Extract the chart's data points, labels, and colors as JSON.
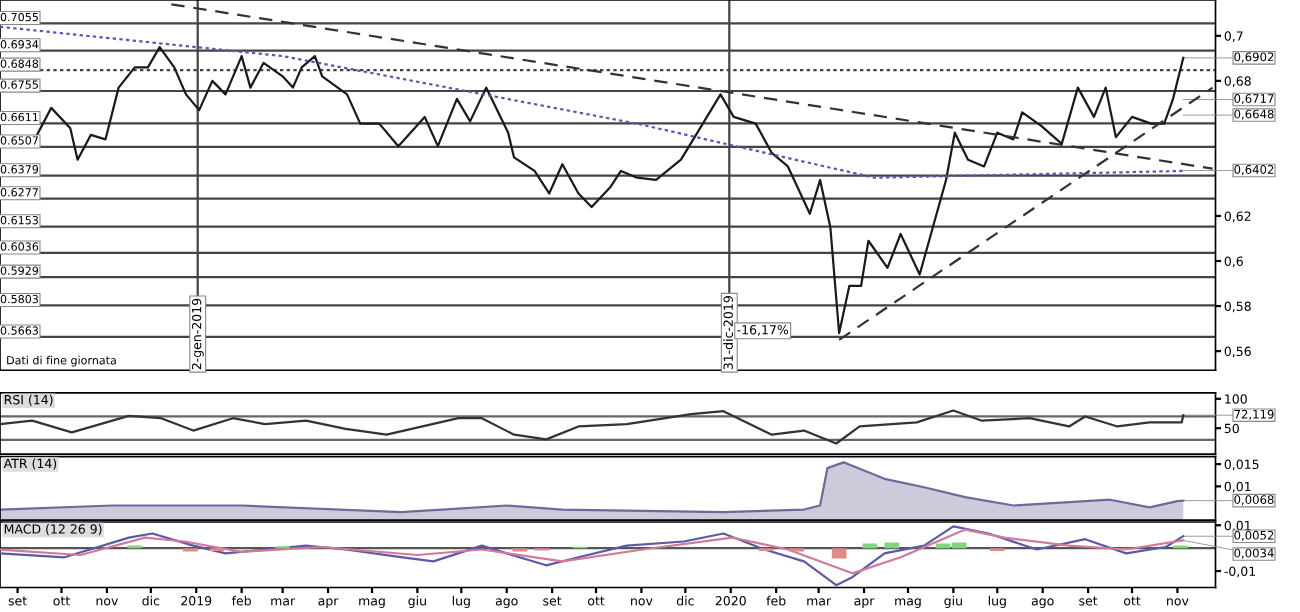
{
  "chart_data": [
    {
      "type": "line",
      "xlim": [
        "2018-08-20",
        "2020-11-27"
      ],
      "ylim": [
        0.5515,
        0.7159
      ],
      "yticks": [
        {
          "value": 0.7,
          "label": "0,7"
        },
        {
          "value": 0.68,
          "label": "0,68"
        },
        {
          "value": 0.62,
          "label": "0,62"
        },
        {
          "value": 0.6,
          "label": "0,6"
        },
        {
          "value": 0.58,
          "label": "0,58"
        },
        {
          "value": 0.56,
          "label": "0,56"
        }
      ],
      "tick_labels": "y",
      "grid": false,
      "legend": false,
      "series": [
        {
          "color": "#1a1a1a",
          "x": [
            "2018-09-11",
            "2018-09-24",
            "2018-10-07",
            "2018-10-12",
            "2018-10-21",
            "2018-10-31",
            "2018-11-09",
            "2018-11-20",
            "2018-11-29",
            "2018-12-07",
            "2018-12-17",
            "2018-12-25",
            "2019-01-03",
            "2019-01-12",
            "2019-01-21",
            "2019-02-01",
            "2019-02-07",
            "2019-02-16",
            "2019-03-01",
            "2019-03-08",
            "2019-03-14",
            "2019-03-23",
            "2019-03-28",
            "2019-04-14",
            "2019-04-23",
            "2019-05-06",
            "2019-05-19",
            "2019-06-06",
            "2019-06-15",
            "2019-06-28",
            "2019-07-07",
            "2019-07-18",
            "2019-08-02",
            "2019-08-06",
            "2019-08-20",
            "2019-08-30",
            "2019-09-08",
            "2019-09-19",
            "2019-09-28",
            "2019-10-11",
            "2019-10-18",
            "2019-10-29",
            "2019-11-11",
            "2019-11-28",
            "2019-12-12",
            "2019-12-25",
            "2020-01-03",
            "2020-01-18",
            "2020-01-29",
            "2020-02-09",
            "2020-02-24",
            "2020-03-02",
            "2020-03-09",
            "2020-03-15",
            "2020-03-22",
            "2020-03-30",
            "2020-04-04",
            "2020-04-17",
            "2020-04-26",
            "2020-05-09",
            "2020-05-18",
            "2020-05-27",
            "2020-06-02",
            "2020-06-11",
            "2020-06-22",
            "2020-07-01",
            "2020-07-12",
            "2020-07-18",
            "2020-07-31",
            "2020-08-14",
            "2020-08-25",
            "2020-09-05",
            "2020-09-13",
            "2020-09-20",
            "2020-10-01",
            "2020-10-14",
            "2020-10-23",
            "2020-10-29",
            "2020-11-05"
          ],
          "values": [
            0.652,
            0.668,
            0.659,
            0.645,
            0.656,
            0.654,
            0.677,
            0.686,
            0.686,
            0.695,
            0.686,
            0.674,
            0.667,
            0.68,
            0.674,
            0.691,
            0.677,
            0.688,
            0.682,
            0.677,
            0.686,
            0.691,
            0.682,
            0.674,
            0.661,
            0.661,
            0.651,
            0.664,
            0.651,
            0.672,
            0.662,
            0.677,
            0.657,
            0.646,
            0.64,
            0.63,
            0.643,
            0.63,
            0.624,
            0.633,
            0.64,
            0.637,
            0.636,
            0.645,
            0.66,
            0.674,
            0.664,
            0.661,
            0.648,
            0.642,
            0.621,
            0.636,
            0.615,
            0.568,
            0.589,
            0.589,
            0.609,
            0.597,
            0.612,
            0.594,
            0.615,
            0.636,
            0.657,
            0.645,
            0.642,
            0.657,
            0.654,
            0.666,
            0.66,
            0.652,
            0.677,
            0.664,
            0.677,
            0.655,
            0.664,
            0.661,
            0.661,
            0.672,
            0.6902
          ]
        },
        {
          "color": "#5555bb",
          "line_style": "dotted",
          "x": [
            "2018-08-20",
            "2019-03-01",
            "2019-10-29",
            "2020-04-08",
            "2020-08-27",
            "2020-11-05"
          ],
          "values": [
            0.704,
            0.691,
            0.661,
            0.637,
            0.639,
            0.64
          ]
        },
        {
          "color": "#333333",
          "line_style": "dashed",
          "x": [
            "2018-12-15",
            "2020-11-25"
          ],
          "values": [
            0.714,
            0.641
          ]
        },
        {
          "color": "#333333",
          "line_style": "dashed",
          "x": [
            "2020-03-15",
            "2020-11-25"
          ],
          "values": [
            0.565,
            0.677
          ]
        }
      ],
      "ref_lines": [
        {
          "axis": "y",
          "value": 0.7055,
          "label": "0.7055",
          "color": "#444444"
        },
        {
          "axis": "y",
          "value": 0.6934,
          "label": "0.6934",
          "color": "#444444"
        },
        {
          "axis": "y",
          "value": 0.6848,
          "label": "0.6848",
          "color": "#444444",
          "line_style": "dotted"
        },
        {
          "axis": "y",
          "value": 0.6755,
          "label": "0.6755",
          "color": "#444444"
        },
        {
          "axis": "y",
          "value": 0.6611,
          "label": "0.6611",
          "color": "#444444"
        },
        {
          "axis": "y",
          "value": 0.6507,
          "label": "0.6507",
          "color": "#444444"
        },
        {
          "axis": "y",
          "value": 0.6379,
          "label": "0.6379",
          "color": "#444444"
        },
        {
          "axis": "y",
          "value": 0.6277,
          "label": "0.6277",
          "color": "#444444"
        },
        {
          "axis": "y",
          "value": 0.6153,
          "label": "0.6153",
          "color": "#444444"
        },
        {
          "axis": "y",
          "value": 0.6036,
          "label": "0.6036",
          "color": "#444444"
        },
        {
          "axis": "y",
          "value": 0.5929,
          "label": "0.5929",
          "color": "#444444"
        },
        {
          "axis": "y",
          "value": 0.5803,
          "label": "0.5803",
          "color": "#444444"
        },
        {
          "axis": "y",
          "value": 0.5663,
          "label": "0.5663",
          "color": "#444444"
        },
        {
          "axis": "x",
          "value": "2019-01-02",
          "label": "2-gen-2019",
          "color": "#444444"
        },
        {
          "axis": "x",
          "value": "2019-12-31",
          "label": "31-dic-2019",
          "color": "#444444"
        }
      ],
      "annotations": [
        {
          "text": "0,6902",
          "x": "2020-11-05",
          "y": 0.6902
        },
        {
          "text": "0,6717",
          "x": "2020-11-05",
          "y": 0.6717
        },
        {
          "text": "0,6648",
          "x": "2020-11-05",
          "y": 0.6648
        },
        {
          "text": "0,6402",
          "x": "2020-11-05",
          "y": 0.6402
        },
        {
          "text": "-16,17%",
          "x": "2020-01-05",
          "y": 0.569
        },
        "Dati di fine giornata"
      ]
    },
    {
      "type": "line",
      "title": "RSI (14)",
      "xlim": [
        "2018-08-20",
        "2020-11-27"
      ],
      "ylim": [
        6,
        110
      ],
      "yticks": [
        100,
        50
      ],
      "tick_labels": "y",
      "grid": false,
      "legend": false,
      "series": [
        {
          "color": "#333333",
          "x": [
            "2018-08-20",
            "2018-09-11",
            "2018-10-08",
            "2018-11-16",
            "2018-12-08",
            "2018-12-30",
            "2019-01-26",
            "2019-02-17",
            "2019-03-17",
            "2019-04-13",
            "2019-05-11",
            "2019-06-29",
            "2019-07-15",
            "2019-08-06",
            "2019-08-28",
            "2019-09-19",
            "2019-10-22",
            "2019-12-05",
            "2019-12-27",
            "2020-01-29",
            "2020-02-20",
            "2020-03-13",
            "2020-03-29",
            "2020-05-07",
            "2020-06-01",
            "2020-06-20",
            "2020-07-23",
            "2020-08-19",
            "2020-08-30",
            "2020-09-21",
            "2020-10-13",
            "2020-11-04",
            "2020-11-05"
          ],
          "values": [
            57,
            63,
            43,
            71,
            67,
            46,
            67,
            57,
            63,
            49,
            39,
            67,
            67,
            39,
            31,
            53,
            57,
            74,
            79,
            39,
            46,
            24,
            53,
            60,
            80,
            63,
            67,
            53,
            70,
            53,
            60,
            60,
            72.119
          ]
        }
      ],
      "ref_lines": [
        {
          "axis": "y",
          "value": 70,
          "color": "#666666"
        },
        {
          "axis": "y",
          "value": 30,
          "color": "#666666"
        }
      ],
      "annotations": [
        {
          "text": "72,119",
          "x": "2020-11-05",
          "y": 72.119
        }
      ]
    },
    {
      "type": "area",
      "title": "ATR (14)",
      "xlim": [
        "2018-08-20",
        "2020-11-27"
      ],
      "ylim": [
        0.0024,
        0.0167
      ],
      "yticks": [
        {
          "value": 0.015,
          "label": "0,015"
        },
        {
          "value": 0.01,
          "label": "0,01"
        }
      ],
      "tick_labels": "y",
      "grid": false,
      "legend": false,
      "series": [
        {
          "color": "#6b6b9a",
          "x": [
            "2018-08-20",
            "2018-11-05",
            "2019-02-01",
            "2019-05-21",
            "2019-08-01",
            "2019-09-08",
            "2019-12-27",
            "2020-02-20",
            "2020-03-02",
            "2020-03-07",
            "2020-03-18",
            "2020-04-15",
            "2020-05-12",
            "2020-06-09",
            "2020-07-12",
            "2020-09-16",
            "2020-10-13",
            "2020-11-01",
            "2020-11-05"
          ],
          "values": [
            0.0048,
            0.0057,
            0.0057,
            0.0042,
            0.0057,
            0.0048,
            0.0042,
            0.0048,
            0.0057,
            0.0141,
            0.0154,
            0.0117,
            0.0098,
            0.0076,
            0.0057,
            0.007,
            0.0053,
            0.0067,
            0.0068
          ]
        }
      ],
      "annotations": [
        {
          "text": "0,0068",
          "x": "2020-11-05",
          "y": 0.0068
        }
      ]
    },
    {
      "type": "line",
      "title": "MACD (12 26 9)",
      "xlim": [
        "2018-08-20",
        "2020-11-27"
      ],
      "ylim": [
        -0.0172,
        0.0114
      ],
      "yticks": [
        {
          "value": 0.01,
          "label": "0,01"
        },
        {
          "value": -0.01,
          "label": "-0,01"
        }
      ],
      "grid": false,
      "legend": false,
      "xticks": [
        {
          "value": "2018-09",
          "label": "set"
        },
        {
          "value": "2018-10",
          "label": "ott"
        },
        {
          "value": "2018-11",
          "label": "nov"
        },
        {
          "value": "2018-12",
          "label": "dic"
        },
        {
          "value": "2019-01",
          "label": "2019"
        },
        {
          "value": "2019-02",
          "label": "feb"
        },
        {
          "value": "2019-03",
          "label": "mar"
        },
        {
          "value": "2019-04",
          "label": "apr"
        },
        {
          "value": "2019-05",
          "label": "mag"
        },
        {
          "value": "2019-06",
          "label": "giu"
        },
        {
          "value": "2019-07",
          "label": "lug"
        },
        {
          "value": "2019-08",
          "label": "ago"
        },
        {
          "value": "2019-09",
          "label": "set"
        },
        {
          "value": "2019-10",
          "label": "ott"
        },
        {
          "value": "2019-11",
          "label": "nov"
        },
        {
          "value": "2019-12",
          "label": "dic"
        },
        {
          "value": "2020-01",
          "label": "2020"
        },
        {
          "value": "2020-02",
          "label": "feb"
        },
        {
          "value": "2020-03",
          "label": "mar"
        },
        {
          "value": "2020-04",
          "label": "apr"
        },
        {
          "value": "2020-05",
          "label": "mag"
        },
        {
          "value": "2020-06",
          "label": "giu"
        },
        {
          "value": "2020-07",
          "label": "lug"
        },
        {
          "value": "2020-08",
          "label": "ago"
        },
        {
          "value": "2020-09",
          "label": "set"
        },
        {
          "value": "2020-10",
          "label": "ott"
        },
        {
          "value": "2020-11",
          "label": "nov"
        }
      ],
      "series": [
        {
          "type": "bar",
          "x": [
            "2018-11-20",
            "2018-12-28",
            "2019-01-15",
            "2019-03-01",
            "2019-08-10",
            "2019-08-25",
            "2019-09-20",
            "2020-01-25",
            "2020-02-15",
            "2020-03-15",
            "2020-04-05",
            "2020-04-20",
            "2020-05-25",
            "2020-06-05",
            "2020-07-01",
            "2020-09-25",
            "2020-11-03"
          ],
          "values": [
            0.0012,
            -0.0015,
            -0.0012,
            0.0008,
            -0.0015,
            -0.001,
            0.0006,
            -0.0012,
            -0.0015,
            -0.0045,
            0.002,
            0.0025,
            0.002,
            0.0025,
            -0.0012,
            -0.0008,
            0.0012
          ],
          "colors": [
            "#7fd67f",
            "#e08a8a",
            "#e08a8a",
            "#7fd67f",
            "#e08a8a",
            "#e08a8a",
            "#7fd67f",
            "#e08a8a",
            "#e08a8a",
            "#e08a8a",
            "#7fd67f",
            "#7fd67f",
            "#7fd67f",
            "#7fd67f",
            "#e08a8a",
            "#e08a8a",
            "#7fd67f"
          ]
        },
        {
          "color": "#5a5aa8",
          "x": [
            "2018-08-20",
            "2018-10-03",
            "2018-11-16",
            "2018-12-02",
            "2018-12-30",
            "2019-01-21",
            "2019-02-17",
            "2019-03-17",
            "2019-04-13",
            "2019-05-22",
            "2019-06-12",
            "2019-07-15",
            "2019-08-01",
            "2019-08-28",
            "2019-09-19",
            "2019-10-22",
            "2019-11-30",
            "2019-12-27",
            "2020-01-24",
            "2020-02-20",
            "2020-03-13",
            "2020-03-24",
            "2020-04-15",
            "2020-05-12",
            "2020-06-01",
            "2020-06-25",
            "2020-07-28",
            "2020-08-30",
            "2020-09-27",
            "2020-10-24",
            "2020-11-05"
          ],
          "values": [
            -0.0023,
            -0.004,
            0.0046,
            0.0064,
            0.0011,
            -0.0023,
            -0.0006,
            0.0011,
            -0.0006,
            -0.004,
            -0.0058,
            0.0011,
            -0.0023,
            -0.0075,
            -0.004,
            0.0011,
            0.0029,
            0.0064,
            -0.0006,
            -0.0058,
            -0.0162,
            -0.0127,
            -0.0023,
            0.0011,
            0.0095,
            0.0064,
            -0.0006,
            0.0039,
            -0.0023,
            0.0005,
            0.0052
          ]
        },
        {
          "color": "#d27a9a",
          "x": [
            "2018-08-20",
            "2018-10-14",
            "2018-11-27",
            "2018-12-24",
            "2019-02-01",
            "2019-03-28",
            "2019-06-01",
            "2019-07-15",
            "2019-09-08",
            "2019-11-02",
            "2020-01-02",
            "2020-02-09",
            "2020-03-24",
            "2020-04-26",
            "2020-06-09",
            "2020-07-06",
            "2020-08-19",
            "2020-09-27",
            "2020-11-05"
          ],
          "values": [
            -0.0006,
            -0.003,
            0.0046,
            0.0029,
            -0.0016,
            0.0005,
            -0.003,
            -0.0006,
            -0.0058,
            -0.0006,
            0.0046,
            -0.0006,
            -0.011,
            -0.004,
            0.0081,
            0.0046,
            0.0011,
            -0.0006,
            0.0034
          ]
        }
      ],
      "ref_lines": [
        {
          "axis": "y",
          "value": 0,
          "color": "#555555"
        }
      ],
      "annotations": [
        {
          "text": "0,0052",
          "x": "2020-11-05",
          "y": 0.0052
        },
        {
          "text": "0,0034",
          "x": "2020-11-05",
          "y": 0.0034
        }
      ]
    }
  ]
}
